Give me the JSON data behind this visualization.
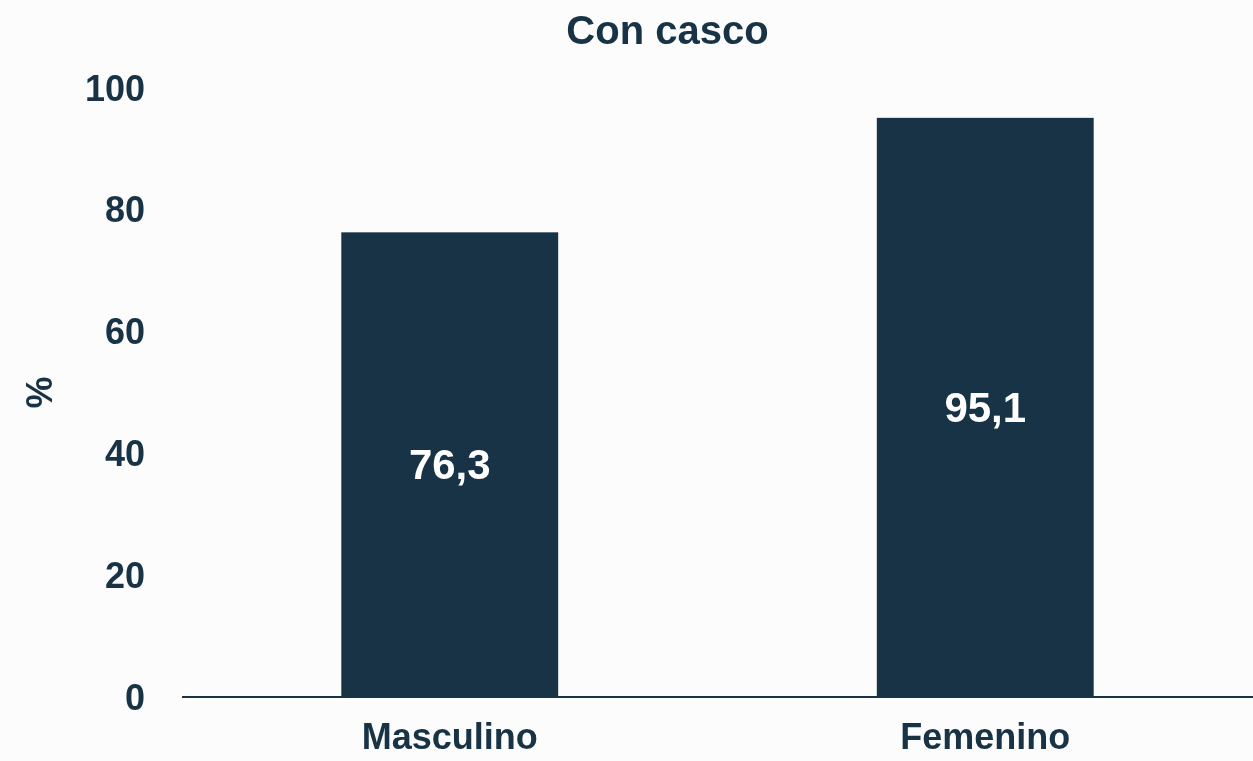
{
  "chart_data": {
    "type": "bar",
    "title": "Con casco",
    "ylabel": "%",
    "categories": [
      "Masculino",
      "Femenino"
    ],
    "values": [
      76.3,
      95.1
    ],
    "value_labels": [
      "76,3",
      "95,1"
    ],
    "color": "#173345",
    "ylim": [
      0,
      100
    ],
    "yticks": [
      0,
      20,
      40,
      60,
      80,
      100
    ],
    "grid": false
  }
}
